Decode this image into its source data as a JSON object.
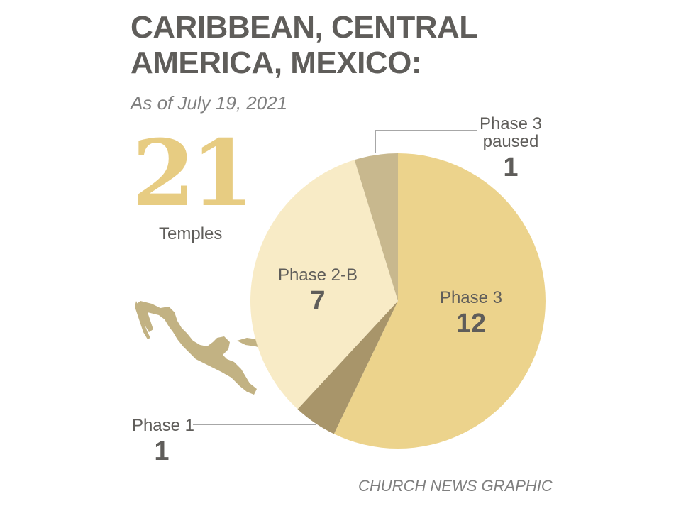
{
  "title_lines": [
    "CARIBBEAN, CENTRAL",
    "AMERICA, MEXICO:"
  ],
  "subtitle": "As of July 19, 2021",
  "total": {
    "value": "21",
    "label": "Temples"
  },
  "credit": "CHURCH NEWS GRAPHIC",
  "colors": {
    "phase3": "#ecd38c",
    "phase1": "#a8956a",
    "phase2b": "#f8ebc6",
    "phase3paused": "#c8b88e",
    "map": "#c2b283",
    "text": "#5f5d5a",
    "accent": "#e7cc82"
  },
  "chart_data": {
    "type": "pie",
    "title": "CARIBBEAN, CENTRAL AMERICA, MEXICO:",
    "subtitle": "As of July 19, 2021",
    "slices": [
      {
        "label": "Phase 3",
        "value": 12,
        "color": "#ecd38c"
      },
      {
        "label": "Phase 1",
        "value": 1,
        "color": "#a8956a"
      },
      {
        "label": "Phase 2-B",
        "value": 7,
        "color": "#f8ebc6"
      },
      {
        "label": "Phase 3 paused",
        "value": 1,
        "color": "#c8b88e"
      }
    ]
  }
}
